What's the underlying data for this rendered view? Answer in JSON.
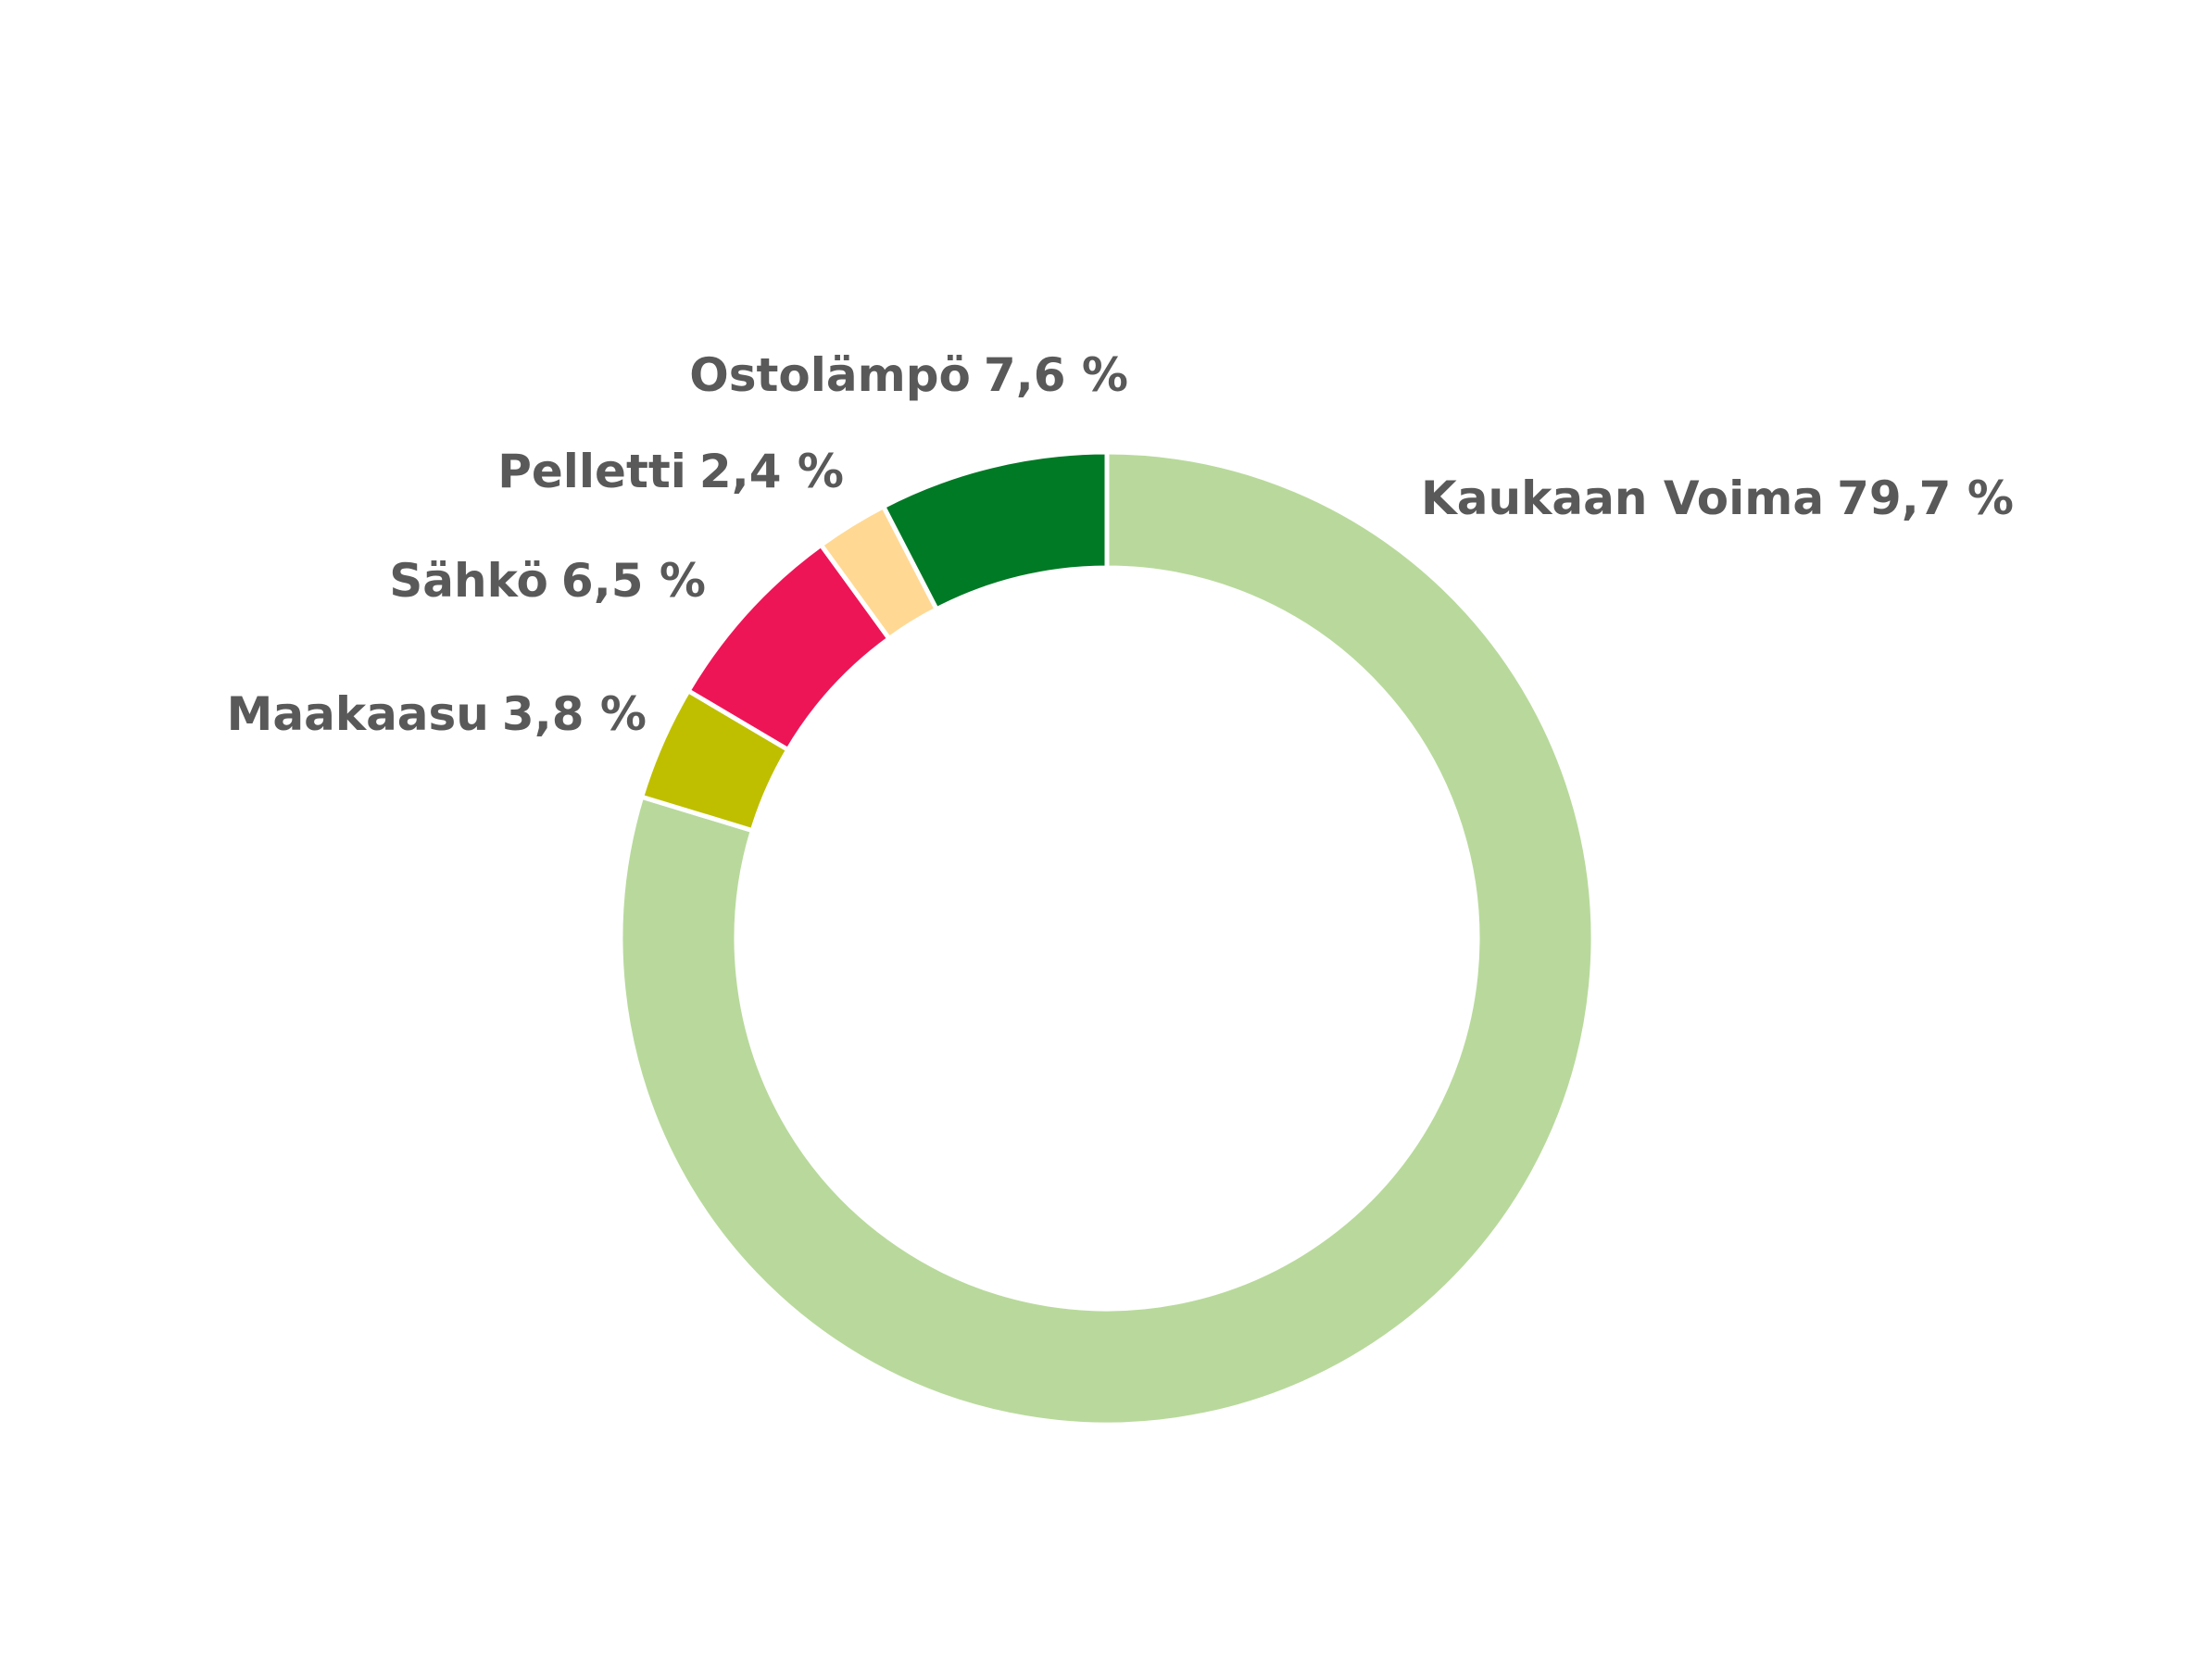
{
  "chart_data": {
    "type": "donut",
    "categories": [
      "Kaukaan Voima",
      "Maakaasu",
      "Sähkö",
      "Pelletti",
      "Ostolämpö"
    ],
    "values": [
      79.7,
      3.8,
      6.5,
      2.4,
      7.6
    ],
    "value_labels": [
      "79,7 %",
      "3,8 %",
      "6,5 %",
      "2,4 %",
      "7,6 %"
    ],
    "colors": [
      "#b8d99b",
      "#bfbf00",
      "#ee1556",
      "#ffd993",
      "#007a25"
    ]
  }
}
